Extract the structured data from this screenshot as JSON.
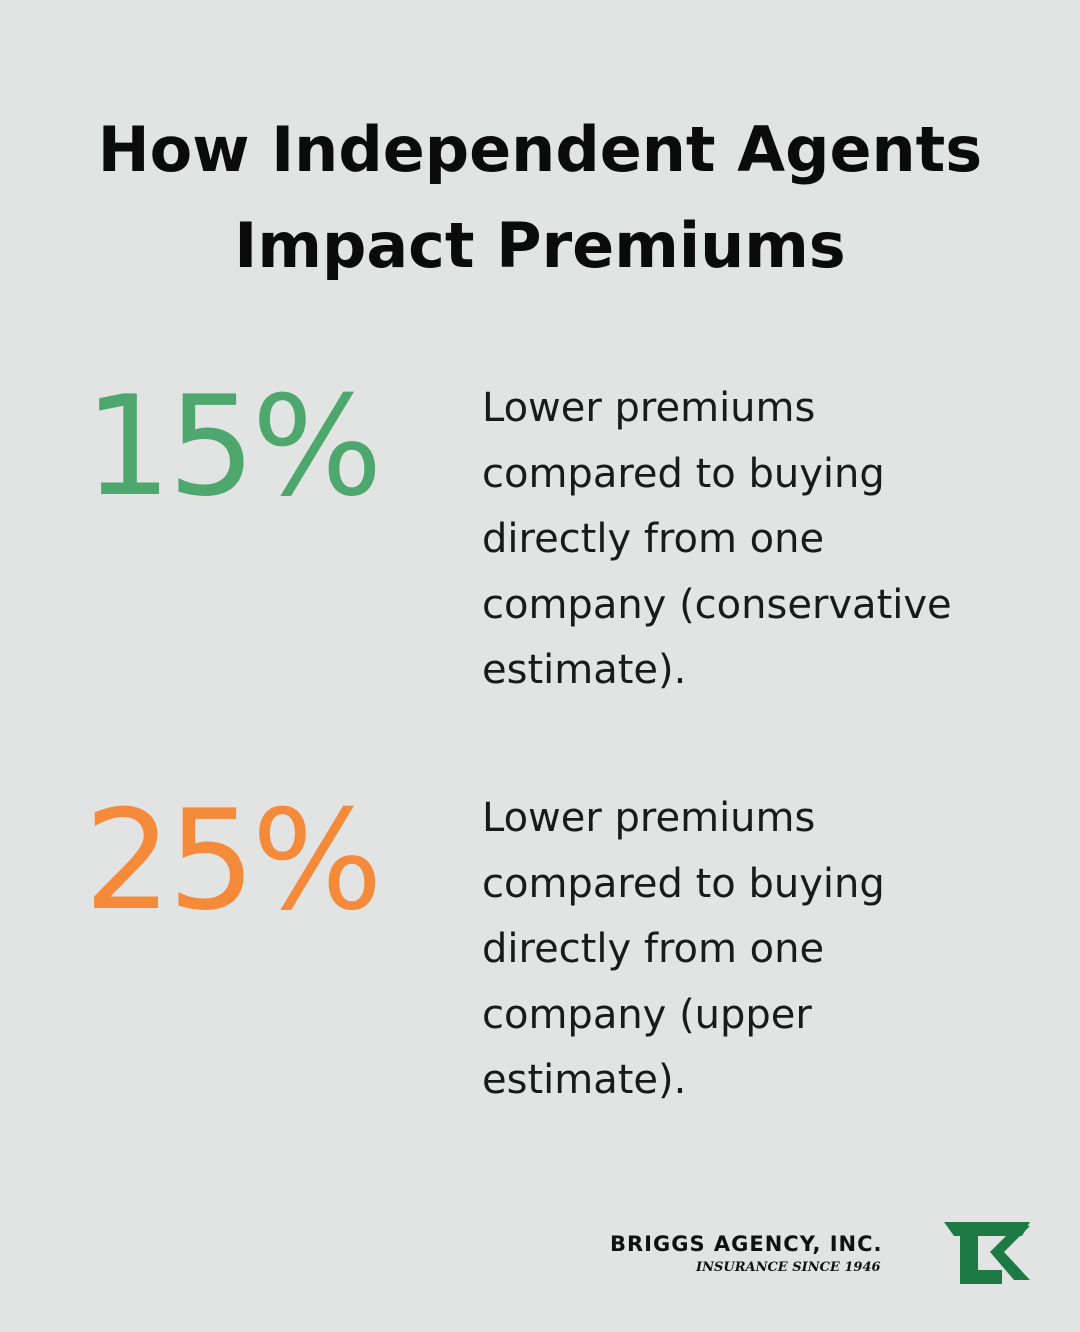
{
  "title": {
    "line1": "How Independent Agents",
    "line2": "Impact Premiums"
  },
  "stats": [
    {
      "value": "15%",
      "color": "#4ea86d",
      "lines": [
        "Lower premiums",
        "compared to buying",
        "directly from one",
        "company (conservative",
        "estimate)."
      ]
    },
    {
      "value": "25%",
      "color": "#f58a3b",
      "lines": [
        "Lower premiums",
        "compared to buying",
        "directly from one",
        "company (upper",
        "estimate)."
      ]
    }
  ],
  "logo": {
    "name": "BRIGGS AGENCY, INC.",
    "tagline": "INSURANCE SINCE 1946",
    "mark_color": "#1e7a43",
    "mark_icon": "briggs-agency-logo-mark"
  }
}
